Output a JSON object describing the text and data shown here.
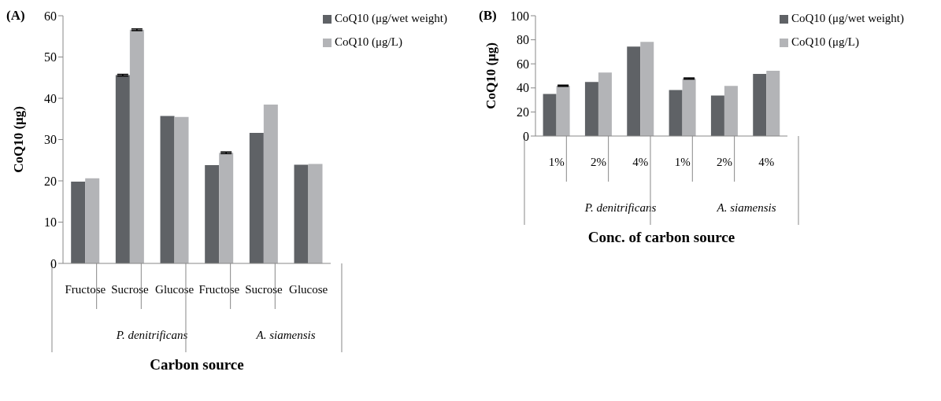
{
  "chart_data": [
    {
      "type": "bar",
      "title": "(A)",
      "xlabel": "Carbon source",
      "ylabel": "CoQ10 (μg)",
      "categories": [
        "Fructose",
        "Sucrose",
        "Glucose",
        "Fructose",
        "Sucrose",
        "Glucose"
      ],
      "annotations": [
        "P. denitrificans",
        "A. siamensis"
      ],
      "series": [
        {
          "name": "CoQ10 (μg/wet weight)",
          "color": "#5f6266",
          "values": [
            19.8,
            45.6,
            35.7,
            23.8,
            31.6,
            23.9
          ],
          "errors": [
            null,
            0.2,
            null,
            null,
            null,
            null
          ]
        },
        {
          "name": "CoQ10 (μg/L)",
          "color": "#b3b4b7",
          "values": [
            20.6,
            56.6,
            35.5,
            26.8,
            38.5,
            24.1
          ],
          "errors": [
            null,
            0.2,
            null,
            0.2,
            null,
            null
          ]
        }
      ],
      "ylim": [
        0,
        60
      ],
      "yticks": [
        0,
        10,
        20,
        30,
        40,
        50,
        60
      ],
      "grid": false,
      "legend": "top right"
    },
    {
      "type": "bar",
      "title": "(B)",
      "xlabel": "Conc. of carbon source",
      "ylabel": "CoQ10 (μg)",
      "categories": [
        "1%",
        "2%",
        "4%",
        "1%",
        "2%",
        "4%"
      ],
      "annotations": [
        "P. denitrificans",
        "A. siamensis"
      ],
      "series": [
        {
          "name": "CoQ10 (μg/wet weight)",
          "color": "#5f6266",
          "values": [
            35,
            45,
            74.3,
            38.2,
            33.7,
            51.6
          ],
          "errors": [
            null,
            null,
            null,
            null,
            null,
            null
          ]
        },
        {
          "name": "CoQ10 (μg/L)",
          "color": "#b3b4b7",
          "values": [
            41.8,
            52.8,
            78.3,
            47.8,
            41.7,
            54.2
          ],
          "errors": [
            0.5,
            null,
            null,
            0.5,
            null,
            null
          ]
        }
      ],
      "ylim": [
        0,
        100
      ],
      "yticks": [
        0,
        20,
        40,
        60,
        80,
        100
      ],
      "grid": false,
      "legend": "top right"
    }
  ]
}
